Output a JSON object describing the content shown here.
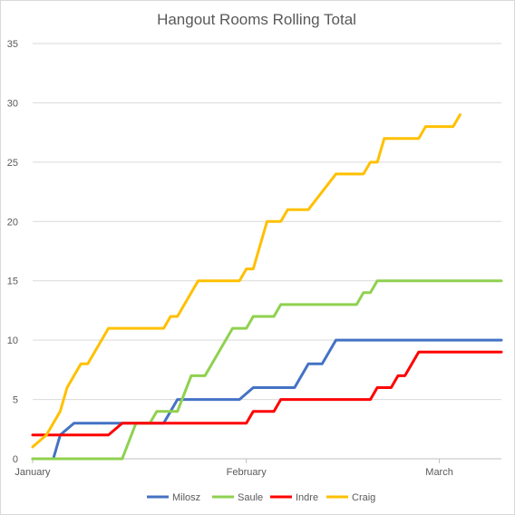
{
  "chart_data": {
    "type": "line",
    "title": "Hangout Rooms Rolling Total",
    "xlabel": "",
    "ylabel": "",
    "ylim": [
      0,
      35
    ],
    "y_ticks": [
      0,
      5,
      10,
      15,
      20,
      25,
      30,
      35
    ],
    "x_range": [
      "2019-01-01",
      "2019-03-10"
    ],
    "x_ticks": [
      {
        "date": "2019-01-01",
        "label": "January"
      },
      {
        "date": "2019-02-01",
        "label": "February"
      },
      {
        "date": "2019-03-01",
        "label": "March"
      }
    ],
    "grid": "horizontal",
    "legend": "bottom",
    "series": [
      {
        "name": "Milosz",
        "color": "#4472c4",
        "points": [
          [
            "2019-01-01",
            0
          ],
          [
            "2019-01-04",
            0
          ],
          [
            "2019-01-05",
            2
          ],
          [
            "2019-01-07",
            3
          ],
          [
            "2019-01-20",
            3
          ],
          [
            "2019-01-21",
            4
          ],
          [
            "2019-01-22",
            5
          ],
          [
            "2019-01-30",
            5
          ],
          [
            "2019-01-31",
            5
          ],
          [
            "2019-02-02",
            6
          ],
          [
            "2019-02-08",
            6
          ],
          [
            "2019-02-10",
            8
          ],
          [
            "2019-02-12",
            8
          ],
          [
            "2019-02-14",
            10
          ],
          [
            "2019-03-10",
            10
          ]
        ]
      },
      {
        "name": "Saule",
        "color": "#8fd14f",
        "points": [
          [
            "2019-01-01",
            0
          ],
          [
            "2019-01-14",
            0
          ],
          [
            "2019-01-16",
            3
          ],
          [
            "2019-01-18",
            3
          ],
          [
            "2019-01-19",
            4
          ],
          [
            "2019-01-22",
            4
          ],
          [
            "2019-01-24",
            7
          ],
          [
            "2019-01-26",
            7
          ],
          [
            "2019-01-28",
            9
          ],
          [
            "2019-01-30",
            11
          ],
          [
            "2019-02-01",
            11
          ],
          [
            "2019-02-02",
            12
          ],
          [
            "2019-02-05",
            12
          ],
          [
            "2019-02-06",
            13
          ],
          [
            "2019-02-17",
            13
          ],
          [
            "2019-02-18",
            14
          ],
          [
            "2019-02-19",
            14
          ],
          [
            "2019-02-20",
            15
          ],
          [
            "2019-03-10",
            15
          ]
        ]
      },
      {
        "name": "Indre",
        "color": "#ff0000",
        "points": [
          [
            "2019-01-01",
            2
          ],
          [
            "2019-01-12",
            2
          ],
          [
            "2019-01-14",
            3
          ],
          [
            "2019-02-01",
            3
          ],
          [
            "2019-02-02",
            4
          ],
          [
            "2019-02-05",
            4
          ],
          [
            "2019-02-06",
            5
          ],
          [
            "2019-02-19",
            5
          ],
          [
            "2019-02-20",
            6
          ],
          [
            "2019-02-22",
            6
          ],
          [
            "2019-02-23",
            7
          ],
          [
            "2019-02-24",
            7
          ],
          [
            "2019-02-26",
            9
          ],
          [
            "2019-03-10",
            9
          ]
        ]
      },
      {
        "name": "Craig",
        "color": "#ffc000",
        "points": [
          [
            "2019-01-01",
            1
          ],
          [
            "2019-01-03",
            2
          ],
          [
            "2019-01-05",
            4
          ],
          [
            "2019-01-06",
            6
          ],
          [
            "2019-01-08",
            8
          ],
          [
            "2019-01-09",
            8
          ],
          [
            "2019-01-12",
            11
          ],
          [
            "2019-01-20",
            11
          ],
          [
            "2019-01-21",
            12
          ],
          [
            "2019-01-22",
            12
          ],
          [
            "2019-01-25",
            15
          ],
          [
            "2019-01-29",
            15
          ],
          [
            "2019-01-31",
            15
          ],
          [
            "2019-02-01",
            16
          ],
          [
            "2019-02-02",
            16
          ],
          [
            "2019-02-04",
            20
          ],
          [
            "2019-02-06",
            20
          ],
          [
            "2019-02-07",
            21
          ],
          [
            "2019-02-10",
            21
          ],
          [
            "2019-02-14",
            24
          ],
          [
            "2019-02-18",
            24
          ],
          [
            "2019-02-19",
            25
          ],
          [
            "2019-02-20",
            25
          ],
          [
            "2019-02-21",
            27
          ],
          [
            "2019-02-26",
            27
          ],
          [
            "2019-02-27",
            28
          ],
          [
            "2019-03-03",
            28
          ],
          [
            "2019-03-04",
            29
          ]
        ]
      }
    ]
  }
}
